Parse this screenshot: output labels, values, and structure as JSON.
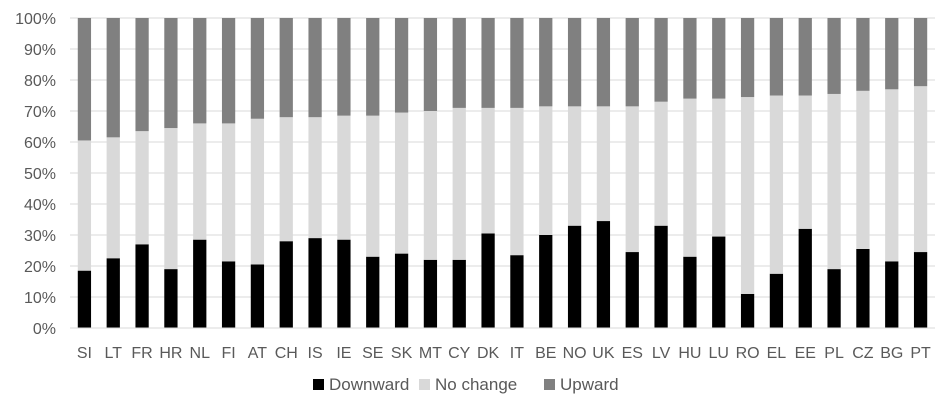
{
  "chart_data": {
    "type": "bar",
    "stacked": true,
    "percent": true,
    "title": "",
    "xlabel": "",
    "ylabel": "",
    "ylim": [
      0,
      100
    ],
    "yticks": [
      0,
      10,
      20,
      30,
      40,
      50,
      60,
      70,
      80,
      90,
      100
    ],
    "ytick_labels": [
      "0%",
      "10%",
      "20%",
      "30%",
      "40%",
      "50%",
      "60%",
      "70%",
      "80%",
      "90%",
      "100%"
    ],
    "grid": true,
    "legend_position": "bottom",
    "categories": [
      "SI",
      "LT",
      "FR",
      "HR",
      "NL",
      "FI",
      "AT",
      "CH",
      "IS",
      "IE",
      "SE",
      "SK",
      "MT",
      "CY",
      "DK",
      "IT",
      "BE",
      "NO",
      "UK",
      "ES",
      "LV",
      "HU",
      "LU",
      "RO",
      "EL",
      "EE",
      "PL",
      "CZ",
      "BG",
      "PT"
    ],
    "series": [
      {
        "name": "Downward",
        "color": "#000000",
        "values": [
          18.5,
          22.5,
          27,
          19,
          28.5,
          21.5,
          20.5,
          28,
          29,
          28.5,
          23,
          24,
          22,
          22,
          30.5,
          23.5,
          30,
          33,
          34.5,
          24.5,
          33,
          23,
          29.5,
          11,
          17.5,
          32,
          19,
          25.5,
          21.5,
          24.5
        ]
      },
      {
        "name": "No change",
        "color": "#d9d9d9",
        "values": [
          42,
          39,
          36.5,
          45.5,
          37.5,
          44.5,
          47,
          40,
          39,
          40,
          45.5,
          45.5,
          48,
          49,
          40.5,
          47.5,
          41.5,
          38.5,
          37,
          47,
          40,
          51,
          44.5,
          63.5,
          57.5,
          43,
          56.5,
          51,
          55.5,
          53.5
        ]
      },
      {
        "name": "Upward",
        "color": "#808080",
        "values": [
          39.5,
          38.5,
          36.5,
          35.5,
          34,
          34,
          32.5,
          32,
          32,
          31.5,
          31.5,
          30.5,
          30,
          29,
          29,
          29,
          28.5,
          28.5,
          28.5,
          28.5,
          27,
          26,
          26,
          25.5,
          25,
          25,
          24.5,
          23.5,
          23,
          22
        ]
      }
    ]
  }
}
